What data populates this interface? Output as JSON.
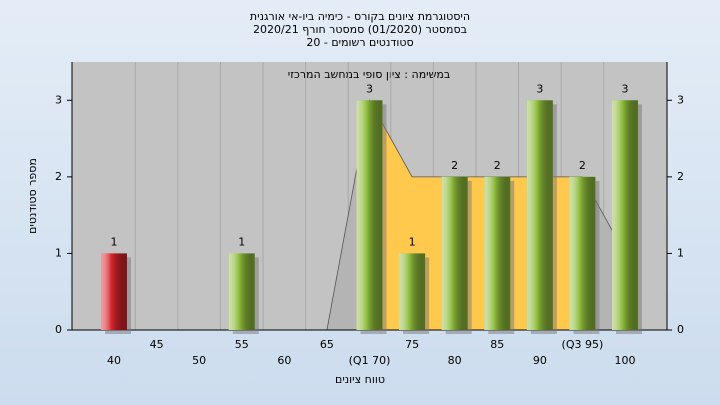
{
  "chart_data": {
    "type": "bar",
    "title": [
      "היסטוגרמת ציונים בקורס - כימיה ביו-אי אורגנית",
      "בסמסטר  (01/2020)  סמסטר חורף  2020/21",
      "סטודנטים רשומים - 20"
    ],
    "subtitle": "במשימה : ציון סופי במחשב המרכזי",
    "x_label": "טווח ציונים",
    "y_label": "מספר סטודנטים",
    "categories": [
      "40",
      "45",
      "50",
      "55",
      "60",
      "65",
      "(Q1 70)",
      "75",
      "80",
      "85",
      "90",
      "(Q3 95)",
      "100"
    ],
    "values": [
      1,
      0,
      0,
      1,
      0,
      0,
      3,
      1,
      2,
      2,
      3,
      2,
      3
    ],
    "colors": [
      "#d8242c",
      "#8dbb3a",
      "#8dbb3a",
      "#8dbb3a",
      "#8dbb3a",
      "#8dbb3a",
      "#8dbb3a",
      "#8dbb3a",
      "#8dbb3a",
      "#8dbb3a",
      "#8dbb3a",
      "#8dbb3a",
      "#8dbb3a"
    ],
    "area_values": [
      null,
      null,
      null,
      null,
      null,
      0,
      3,
      2,
      2,
      2,
      2,
      2,
      1
    ],
    "area_color": "#ffc94d",
    "ylim": [
      0,
      3.5
    ],
    "yticks": [
      0,
      1,
      2,
      3
    ],
    "right_axis": true
  }
}
